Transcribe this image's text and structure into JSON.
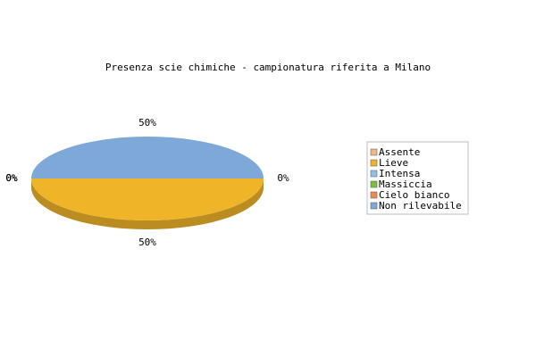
{
  "chart_data": {
    "type": "pie",
    "title": "Presenza scie chimiche - campionatura riferita a Milano",
    "categories": [
      "Assente",
      "Lieve",
      "Intensa",
      "Massiccia",
      "Cielo bianco",
      "Non rilevabile"
    ],
    "values": [
      0,
      50,
      0,
      0,
      0,
      50
    ],
    "value_labels": [
      "0%",
      "50%",
      "0%",
      "0%",
      "0%",
      "50%"
    ],
    "colors": [
      "#f0b888",
      "#f0b428",
      "#90c0e8",
      "#78c038",
      "#f08850",
      "#7ea8d8"
    ],
    "legend": "right"
  }
}
